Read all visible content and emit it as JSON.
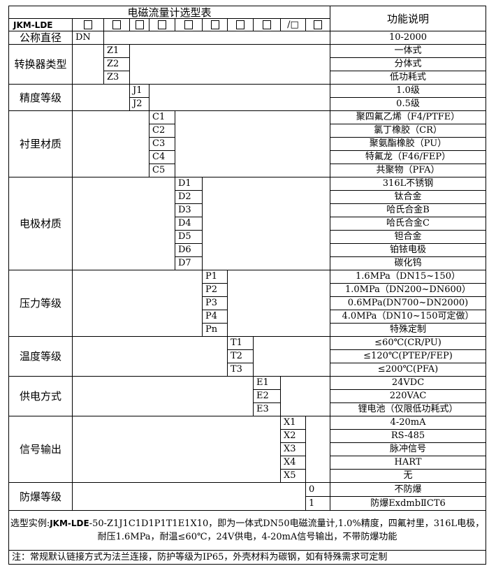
{
  "table": {
    "title": "电磁流量计选型表",
    "function_header": "功能说明",
    "model_prefix": "JKM-LDE",
    "box_glyph": "□",
    "slash_box": "/□",
    "dn_row": {
      "label": "公称直径",
      "code": "DN",
      "desc": "10-2000"
    },
    "groups": [
      {
        "label": "转换器类型",
        "col": 2,
        "codes": [
          "Z1",
          "Z2",
          "Z3"
        ],
        "descs": [
          "一体式",
          "分体式",
          "低功耗式"
        ]
      },
      {
        "label": "精度等级",
        "col": 3,
        "codes": [
          "J1",
          "J2"
        ],
        "descs": [
          "1.0级",
          "0.5级"
        ]
      },
      {
        "label": "衬里材质",
        "col": 4,
        "codes": [
          "C1",
          "C2",
          "C3",
          "C4",
          "C5"
        ],
        "descs": [
          "聚四氟乙烯（F4/PTFE）",
          "氯丁橡胶（CR）",
          "聚氨酯橡胶（PU）",
          "特氟龙（F46/FEP）",
          "共聚物（PFA）"
        ]
      },
      {
        "label": "电极材质",
        "col": 5,
        "codes": [
          "D1",
          "D2",
          "D3",
          "D4",
          "D5",
          "D6",
          "D7"
        ],
        "descs": [
          "316L不锈钢",
          "钛合金",
          "哈氏合金B",
          "哈氏合金C",
          "钽合金",
          "铂铱电极",
          "碳化钨"
        ]
      },
      {
        "label": "压力等级",
        "col": 6,
        "codes": [
          "P1",
          "P2",
          "P3",
          "P4",
          "Pn"
        ],
        "descs": [
          "1.6MPa（DN15~150）",
          "1.0MPa（DN200~DN600）",
          "0.6MPa(DN700~DN2000)",
          "4.0MPa（DN10~150可定做）",
          "特殊定制"
        ]
      },
      {
        "label": "温度等级",
        "col": 7,
        "codes": [
          "T1",
          "T2",
          "T3"
        ],
        "descs": [
          "≤60℃(CR/PU)",
          "≤120℃(PTEP/FEP)",
          "≤200℃(PFA)"
        ]
      },
      {
        "label": "供电方式",
        "col": 8,
        "codes": [
          "E1",
          "E2",
          "E3"
        ],
        "descs": [
          "24VDC",
          "220VAC",
          "锂电池（仅限低功耗式）"
        ]
      },
      {
        "label": "信号输出",
        "col": 9,
        "codes": [
          "X1",
          "X2",
          "X3",
          "X4",
          "X5"
        ],
        "descs": [
          "4-20mA",
          "RS-485",
          "脉冲信号",
          "HART",
          "无"
        ]
      },
      {
        "label": "防爆等级",
        "col": 10,
        "codes": [
          "0",
          "1"
        ],
        "descs": [
          "不防爆",
          "防爆ExdmbⅡCT6"
        ]
      }
    ],
    "example_prefix": "选型实例:",
    "example_model": "JKM-LDE",
    "example_rest": "-50-Z1J1C1D1P1T1E1X10，即为一体式DN50电磁流量计,1.0%精度，四氟衬里，316L电极，耐压1.6MPa，耐温≤60℃，24V供电，4-20mA信号输出，不带防爆功能",
    "note": "注：常规默认链接方式为法兰连接，防护等级为IP65，外壳材料为碳钢，如有特殊需求可定制"
  }
}
